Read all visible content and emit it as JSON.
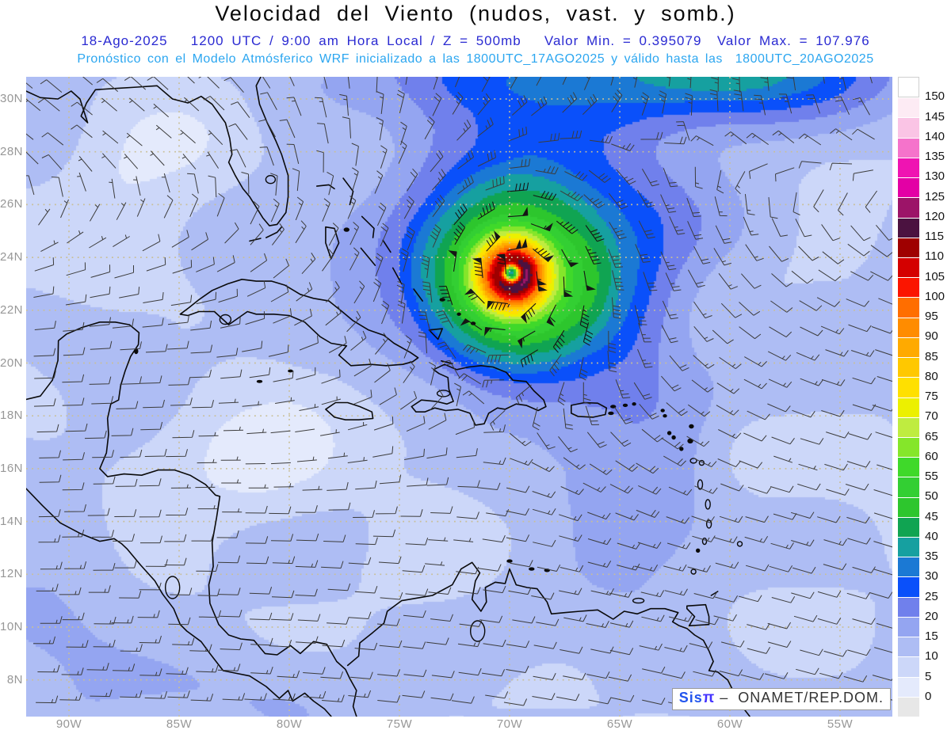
{
  "header": {
    "title": "Velocidad del Viento (nudos, vast. y somb.)",
    "subtitle1": "18-Ago-2025   1200 UTC / 9:00 am Hora Local / Z = 500mb   Valor Min. = 0.395079  Valor Max. = 107.976",
    "subtitle2": "Pronóstico con el Modelo Atmósferico WRF inicializado a las 1800UTC_17AGO2025 y válido hasta las  1800UTC_20AGO2025"
  },
  "credit": {
    "sis": "Sis",
    "pi": "π",
    "rest": " –  ONAMET/REP.DOM."
  },
  "axes": {
    "lat_labels": [
      "30N",
      "28N",
      "26N",
      "24N",
      "22N",
      "20N",
      "18N",
      "16N",
      "14N",
      "12N",
      "10N",
      "8N"
    ],
    "lon_labels": [
      "90W",
      "85W",
      "80W",
      "75W",
      "70W",
      "65W",
      "60W",
      "55W"
    ]
  },
  "chart_data": {
    "type": "heatmap",
    "title": "Velocidad del Viento (nudos, vast. y somb.)",
    "units": "nudos (knots)",
    "valid_time": "18-Ago-2025 1200 UTC / 9:00 am Hora Local",
    "level": "Z = 500mb",
    "model": "WRF",
    "init_time": "1800UTC_17AGO2025",
    "end_time": "1800UTC_20AGO2025",
    "value_min": 0.395079,
    "value_max": 107.976,
    "lat_ticks": [
      30,
      28,
      26,
      24,
      22,
      20,
      18,
      16,
      14,
      12,
      10,
      8
    ],
    "lon_ticks_west": [
      90,
      85,
      80,
      75,
      70,
      65,
      60,
      55
    ],
    "lat_range": [
      6.6,
      30.84
    ],
    "lon_range_west": [
      91.94,
      52.6
    ],
    "grid": "dotted, 2deg lat x 5deg lon",
    "legend_position": "right",
    "colorbar": {
      "levels": [
        0,
        5,
        10,
        15,
        20,
        25,
        30,
        35,
        40,
        45,
        50,
        55,
        60,
        65,
        70,
        75,
        80,
        85,
        90,
        95,
        100,
        105,
        110,
        115,
        120,
        125,
        130,
        135,
        140,
        145,
        150
      ],
      "colors_low_to_high": [
        "#e7e7e7",
        "#e4eafc",
        "#ccd7f9",
        "#aebdf4",
        "#94a5f1",
        "#7080ec",
        "#0a50fa",
        "#1b79d4",
        "#16a0a0",
        "#10a452",
        "#2dc62d",
        "#33cf33",
        "#3fd92a",
        "#85e62a",
        "#bfec40",
        "#ecf000",
        "#ffe000",
        "#ffc800",
        "#ffaa00",
        "#ff8c00",
        "#ff6e00",
        "#fb1500",
        "#d40000",
        "#9f0000",
        "#4b1240",
        "#9c1468",
        "#e300a5",
        "#ef14b2",
        "#f573cb",
        "#fac4e5",
        "#fdebf4",
        "#ffffff"
      ]
    },
    "hurricane": {
      "center_lon_west": 69.9,
      "center_lat": 23.4,
      "max_ring_wind_kt": 108,
      "eye_min_wind_kt": 27,
      "description": "intense cyclonic vortex with blue eye, red crescent max ring, concentric yellow/green/blue bands"
    },
    "field_features": [
      {
        "name": "high-wind band top-right",
        "lon_west": 62,
        "lat": 30.8,
        "peak_kt": 30
      },
      {
        "name": "meridional band",
        "lon_west": 64.3,
        "lat": 19.5,
        "peak_kt": 22
      },
      {
        "name": "calm Gulf of Mexico",
        "lon_west": 87.3,
        "lat": 25.8,
        "min_kt": 1
      },
      {
        "name": "calm west Caribbean",
        "lon_west": 80.3,
        "lat": 17.2,
        "min_kt": 1
      },
      {
        "name": "calm south of Hispaniola",
        "lon_west": 73.2,
        "lat": 17.4,
        "min_kt": 2
      }
    ],
    "colors": {
      "title": "#090909",
      "subtitle1": "#2a2ad2",
      "subtitle2": "#2ba6f0",
      "axis_labels": "#979797",
      "gridline_dots": "#c9bf96",
      "coastline": "#0a0a0a",
      "wind_barbs": "#3c3c3c"
    }
  }
}
